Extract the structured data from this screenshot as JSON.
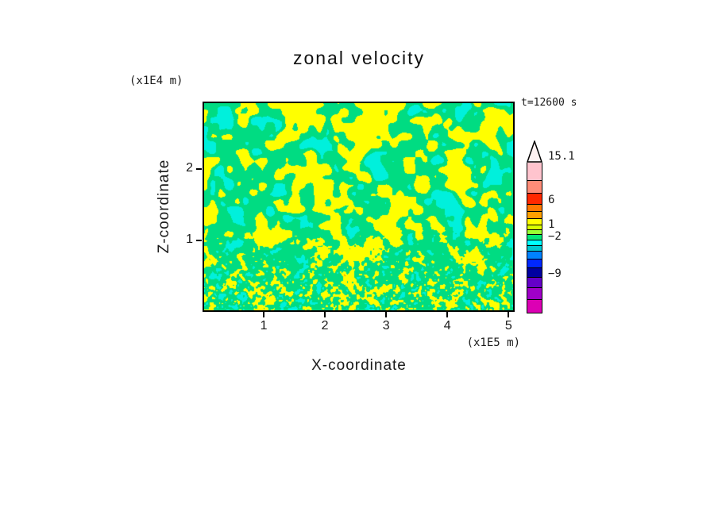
{
  "page": {
    "background": "#ffffff",
    "text_color": "#1a1a1a"
  },
  "chart": {
    "title": "zonal velocity",
    "time_label": "t=12600 s",
    "x_axis": {
      "label": "X-coordinate",
      "unit": "(x1E5 m)"
    },
    "y_axis": {
      "label": "Z-coordinate",
      "unit": "(x1E4 m)"
    }
  },
  "colorbar": {
    "tip_color": "#FFF2F2",
    "segments": [
      {
        "color": "#FFC4CE",
        "h": 22
      },
      {
        "color": "#FF8C78",
        "h": 16
      },
      {
        "color": "#FF2800",
        "h": 14
      },
      {
        "color": "#FF7800",
        "h": 9
      },
      {
        "color": "#FFA000",
        "h": 9
      },
      {
        "color": "#FFFF00",
        "h": 8
      },
      {
        "color": "#D8FF00",
        "h": 6
      },
      {
        "color": "#96FF32",
        "h": 6
      },
      {
        "color": "#00E878",
        "h": 7
      },
      {
        "color": "#00FFFF",
        "h": 7
      },
      {
        "color": "#00C8D2",
        "h": 7
      },
      {
        "color": "#0082FF",
        "h": 10
      },
      {
        "color": "#0028FF",
        "h": 11
      },
      {
        "color": "#0000A0",
        "h": 12
      },
      {
        "color": "#6400C8",
        "h": 13
      },
      {
        "color": "#A000C8",
        "h": 15
      },
      {
        "color": "#DC00B4",
        "h": 17
      }
    ],
    "labels": [
      {
        "text": "15.1",
        "y": 20
      },
      {
        "text": "6",
        "y": 75
      },
      {
        "text": "1",
        "y": 106
      },
      {
        "text": "−2",
        "y": 121
      },
      {
        "text": "−9",
        "y": 168
      }
    ]
  },
  "chart_data": {
    "type": "heatmap",
    "title": "zonal velocity",
    "xlabel": "X-coordinate",
    "ylabel": "Z-coordinate",
    "x_unit": "(x1E5 m)",
    "y_unit": "(x1E4 m)",
    "time_annotation": "t=12600 s",
    "xlim": [
      0,
      5.1
    ],
    "ylim": [
      0,
      2.95
    ],
    "x_ticks": [
      1,
      2,
      3,
      4,
      5
    ],
    "y_ticks": [
      1,
      2
    ],
    "colorbar_tick_values": [
      15.1,
      6,
      1,
      -2,
      -9
    ],
    "field_summary": "Turbulent 2D cross-section of zonal velocity at t=12600 s. Values mostly lie in the -2 to 6 band: green (~ -2..1) and yellow (~ 1..6) interlock in criss-crossing diagonal wave streaks with scattered cyan patches (below -2); the texture becomes much finer-grained toward the bottom boundary, with rare orange/red flecks there.",
    "field_render": {
      "colors": {
        "yellow": "#FFFF00",
        "green": "#00DC82",
        "cyan": "#00F0DC",
        "orange": "#FF5A00"
      },
      "base_freq": 12,
      "fine_freq": 38,
      "shear": 0.75,
      "diag_weight": 0.6,
      "octave_weight": 0.4,
      "fine_blend_start": 0.55,
      "fine_blend_span": 0.35,
      "fine_blend_max": 0.85,
      "yellow_threshold": 0.615,
      "cyan_threshold": 0.42,
      "orange_threshold": 0.88,
      "orange_min_y": 0.8,
      "seed": 7
    }
  }
}
